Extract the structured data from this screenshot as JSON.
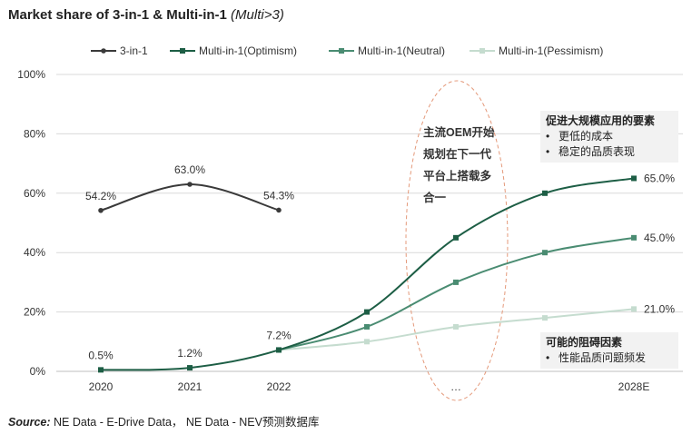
{
  "title": {
    "main": "Market share of 3-in-1 & Multi-in-1",
    "sub": "(Multi>3)"
  },
  "source": {
    "label": "Source:",
    "text": " NE Data - E-Drive Data，  NE Data - NEV预测数据库"
  },
  "annotations": {
    "oem_note": "主流OEM开始规划在下一代平台上搭载多合一",
    "drivers": {
      "title": "促进大规模应用的要素",
      "items": [
        "更低的成本",
        "稳定的品质表现"
      ]
    },
    "barriers": {
      "title": "可能的阻碍因素",
      "items": [
        "性能品质问题频发"
      ]
    }
  },
  "chart_data": {
    "type": "line",
    "title": "Market share of 3-in-1 & Multi-in-1 (Multi>3)",
    "categories": [
      "2020",
      "2021",
      "2022",
      "",
      "…",
      "",
      "2028E"
    ],
    "y_ticks": [
      "0%",
      "20%",
      "40%",
      "60%",
      "80%",
      "100%"
    ],
    "ylim": [
      0,
      100
    ],
    "legend_position": "top",
    "series": [
      {
        "name": "3-in-1",
        "color": "#3a3a3a",
        "values": [
          54.2,
          63.0,
          54.3,
          null,
          null,
          null,
          null
        ],
        "labels": [
          "54.2%",
          "63.0%",
          "54.3%",
          "",
          "",
          "",
          ""
        ]
      },
      {
        "name": "Multi-in-1(Optimism)",
        "color": "#1d5e45",
        "values": [
          0.5,
          1.2,
          7.2,
          20,
          45,
          60,
          65
        ],
        "labels": [
          "0.5%",
          "1.2%",
          "7.2%",
          "",
          "",
          "",
          "65.0%"
        ]
      },
      {
        "name": "Multi-in-1(Neutral)",
        "color": "#4a8c72",
        "values": [
          null,
          null,
          7.2,
          15,
          30,
          40,
          45
        ],
        "labels": [
          "",
          "",
          "",
          "",
          "",
          "",
          "45.0%"
        ]
      },
      {
        "name": "Multi-in-1(Pessimism)",
        "color": "#c5dccf",
        "values": [
          null,
          null,
          7.2,
          10,
          15,
          18,
          21
        ],
        "labels": [
          "",
          "",
          "",
          "",
          "",
          "",
          "21.0%"
        ]
      }
    ]
  }
}
